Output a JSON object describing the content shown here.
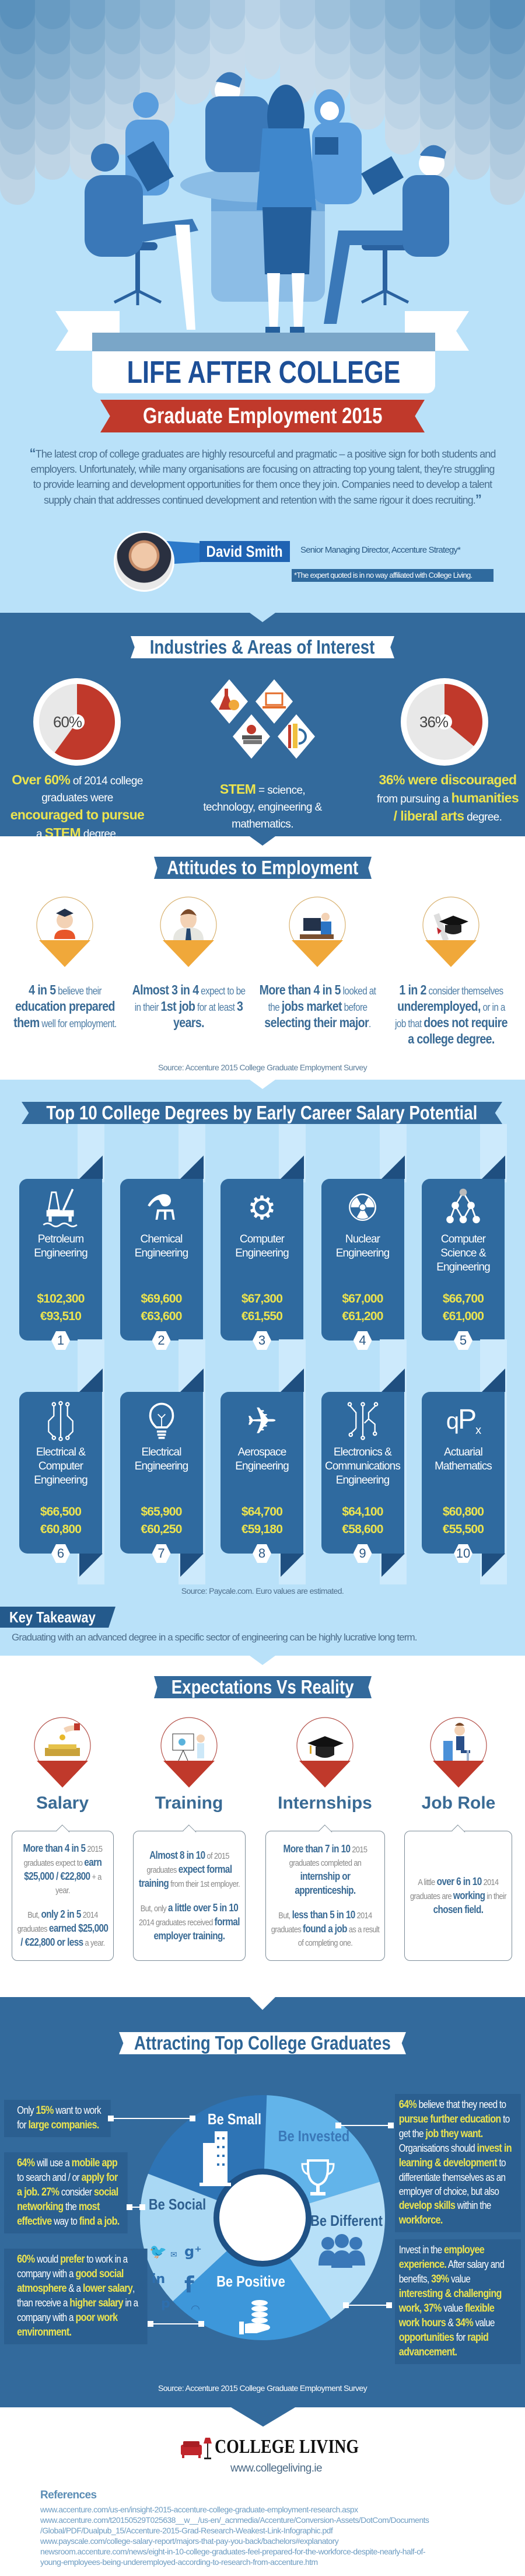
{
  "colors": {
    "light_bg": "#b9e1f9",
    "dark_bg": "#336a9c",
    "card": "#2f6a9f",
    "accent_yellow": "#ebe34f",
    "accent_red": "#c0392b",
    "pin_orange": "#f0a83a",
    "title_blue": "#1d4f97"
  },
  "hero": {
    "title": "LIFE AFTER COLLEGE",
    "subtitle": "Graduate Employment 2015",
    "quote": "The latest crop of college graduates are highly resourceful and pragmatic – a positive sign for both students and employers. Unfortunately, while many organisations are focusing on attracting top young talent, they're struggling to provide learning and development opportunities for them once they join. Companies need to develop a talent supply chain that addresses continued development and retention with the same rigour it does recruiting.",
    "open_quote": "“",
    "close_quote": "”",
    "speaker_name": "David Smith",
    "speaker_title": "Senior Managing Director, Accenture Strategy*",
    "disclaimer": "*The expert quoted is in no way affiliated with College Living."
  },
  "industries": {
    "title": "Industries & Areas of Interest",
    "left_percent": 60,
    "left_label": "60%",
    "left_text": [
      "",
      "Over 60%",
      " of 2014 college graduates were ",
      "encouraged to pursue",
      " a ",
      "STEM",
      " degree."
    ],
    "center_icons": [
      "flask-icon",
      "laptop-icon",
      "books-apple-icon",
      "ruler-pencil-icon"
    ],
    "center_text": [
      "",
      "STEM",
      " = science, technology, engineering & mathematics."
    ],
    "right_percent": 36,
    "right_label": "36%",
    "right_text": [
      "",
      "36% were discouraged",
      " from pursuing a ",
      "humanities / liberal arts",
      " degree."
    ]
  },
  "attitudes": {
    "title": "Attitudes to Employment",
    "items": [
      {
        "icon": "graduate-icon",
        "text": [
          "",
          "4 in 5",
          " believe their ",
          "education prepared them",
          " well for employment."
        ]
      },
      {
        "icon": "businessman-icon",
        "text": [
          "",
          "Almost 3 in 4",
          " expect to be in their ",
          "1st job",
          " for at least ",
          "3 years."
        ]
      },
      {
        "icon": "office-desk-icon",
        "text": [
          "",
          "More than 4 in 5",
          " looked at the ",
          "jobs market",
          " before ",
          "selecting their major",
          "."
        ]
      },
      {
        "icon": "cap-diploma-icon",
        "text": [
          "",
          "1 in 2",
          " consider themselves ",
          "underemployed,",
          " or in a job that ",
          "does not require a college degree."
        ]
      }
    ],
    "source": "Source: Accenture 2015 College Graduate Employment Survey"
  },
  "top10": {
    "title": "Top 10 College Degrees by Early Career Salary Potential",
    "degrees": [
      {
        "rank": "1",
        "name": "Petroleum Engineering",
        "usd": "$102,300",
        "eur": "€93,510",
        "icon": "oil-rig"
      },
      {
        "rank": "2",
        "name": "Chemical Engineering",
        "usd": "$69,600",
        "eur": "€63,600",
        "icon": "flask-gear"
      },
      {
        "rank": "3",
        "name": "Computer Engineering",
        "usd": "$67,300",
        "eur": "€61,550",
        "icon": "gears-laptop"
      },
      {
        "rank": "4",
        "name": "Nuclear Engineering",
        "usd": "$67,000",
        "eur": "€61,200",
        "icon": "radiation"
      },
      {
        "rank": "5",
        "name": "Computer Science & Engineering",
        "usd": "$66,700",
        "eur": "€61,000",
        "icon": "network"
      },
      {
        "rank": "6",
        "name": "Electrical & Computer Engineering",
        "usd": "$66,500",
        "eur": "€60,800",
        "icon": "circuit"
      },
      {
        "rank": "7",
        "name": "Electrical Engineering",
        "usd": "$65,900",
        "eur": "€60,250",
        "icon": "lightbulb"
      },
      {
        "rank": "8",
        "name": "Aerospace Engineering",
        "usd": "$64,700",
        "eur": "€59,180",
        "icon": "airplane"
      },
      {
        "rank": "9",
        "name": "Electronics & Communications Engineering",
        "usd": "$64,100",
        "eur": "€58,600",
        "icon": "circuit-board"
      },
      {
        "rank": "10",
        "name": "Actuarial Mathematics",
        "usd": "$60,800",
        "eur": "€55,500",
        "icon": "actuarial-symbol"
      }
    ],
    "source": "Source: Paycale.com. Euro values are estimated."
  },
  "takeaway": {
    "label": "Key Takeaway",
    "text": "Graduating with an advanced degree in a specific sector of engineering can be highly lucrative long term."
  },
  "expectations": {
    "title": "Expectations Vs Reality",
    "items": [
      {
        "label": "Salary",
        "icon": "money-hand-icon",
        "p1": [
          "",
          "More than 4 in 5",
          " 2015 graduates expect to ",
          "earn $25,000 / €22,800",
          " + a year."
        ],
        "p2": [
          "But, ",
          "only 2 in 5",
          " 2014 graduates ",
          "earned $25,000 / €22,800 or less",
          " a year."
        ]
      },
      {
        "label": "Training",
        "icon": "presentation-icon",
        "p1": [
          "",
          "Almost 8 in 10",
          " of 2015 graduates ",
          "expect formal training",
          " from their 1st employer."
        ],
        "p2": [
          "But, only ",
          "a little over 5 in 10",
          " 2014 graduates received ",
          "formal employer training."
        ]
      },
      {
        "label": "Internships",
        "icon": "graduation-cap-icon",
        "p1": [
          "",
          "More than 7 in 10",
          " 2015 graduates completed an ",
          "internship or apprenticeship."
        ],
        "p2": [
          "But, ",
          "less than 5 in 10",
          " 2014 graduates ",
          "found a job",
          " as a result of completing one."
        ]
      },
      {
        "label": "Job Role",
        "icon": "desk-worker-icon",
        "p1": [
          "A little ",
          "over 6 in 10",
          " 2014 graduates are ",
          "working",
          " in their ",
          "chosen field."
        ],
        "p2": []
      }
    ]
  },
  "attracting": {
    "title": "Attracting Top College Graduates",
    "segments": [
      {
        "label": "Be Small",
        "icon": "building-icon",
        "color": "#2e74b5"
      },
      {
        "label": "Be Invested",
        "icon": "trophy-icon",
        "color": "#62b4ea"
      },
      {
        "label": "Be Different",
        "icon": "people-icon",
        "color": "#b7e0f8"
      },
      {
        "label": "Be Positive",
        "icon": "coins-hand-icon",
        "color": "#3d97da"
      },
      {
        "label": "Be Social",
        "icon": "social-media-icon",
        "color": "#a9d8f4"
      }
    ],
    "social_glyphs": {
      "twitter": "🐦",
      "mail": "✉",
      "gplus": "g⁺",
      "linkedin": "in",
      "facebook": "f",
      "pinterest": "p",
      "rss": "◠"
    },
    "left": [
      [
        "Only ",
        "15%",
        " want to work for ",
        "large companies."
      ],
      [
        "",
        "64%",
        " will use a ",
        "mobile app",
        " to search and / or ",
        "apply for a job. 27%",
        " consider ",
        "social networking",
        " the ",
        "most effective",
        " way to ",
        "find a job."
      ],
      [
        "",
        "60%",
        " would ",
        "prefer",
        " to work in a company with a ",
        "good social atmosphere",
        " & a ",
        "lower salary",
        ", than receive a ",
        "higher salary",
        " in a company with a ",
        "poor work environment."
      ]
    ],
    "right": [
      [
        "",
        "64%",
        " believe that they need to ",
        "pursue further education",
        " to get the ",
        "job they want.",
        " Organisations should ",
        "invest in learning & development",
        " to differentiate themselves as an employer of choice, but also ",
        "develop skills",
        " within the ",
        "workforce."
      ],
      [
        "Invest in the ",
        "employee experience.",
        " After salary and benefits, ",
        "39%",
        " value ",
        "interesting & challenging work, 37%",
        " value ",
        "flexible work hours",
        " & ",
        "34%",
        " value ",
        "opportunities",
        " for ",
        "rapid advancement."
      ]
    ],
    "source": "Source: Accenture 2015 College Graduate Employment Survey"
  },
  "footer": {
    "logo_text": "COLLEGE LIVING",
    "url": "www.collegeliving.ie",
    "references_title": "References",
    "references": [
      "www.accenture.com/us-en/insight-2015-accenture-college-graduate-employment-research.aspx",
      "www.accenture.com/t20150529T025638__w__/us-en/_acnmedia/Accenture/Conversion-Assets/DotCom/Documents",
      "/Global/PDF/Dualpub_15/Accenture-2015-Grad-Research-Weakest-Link-Infographic.pdf",
      "www.payscale.com/college-salary-report/majors-that-pay-you-back/bachelors#explanatory",
      "newsroom.accenture.com/news/eight-in-10-college-graduates-feel-prepared-for-the-workforce-despite-nearly-half-of-",
      "young-employees-being-underemployed-according-to-research-from-accenture.htm"
    ]
  }
}
